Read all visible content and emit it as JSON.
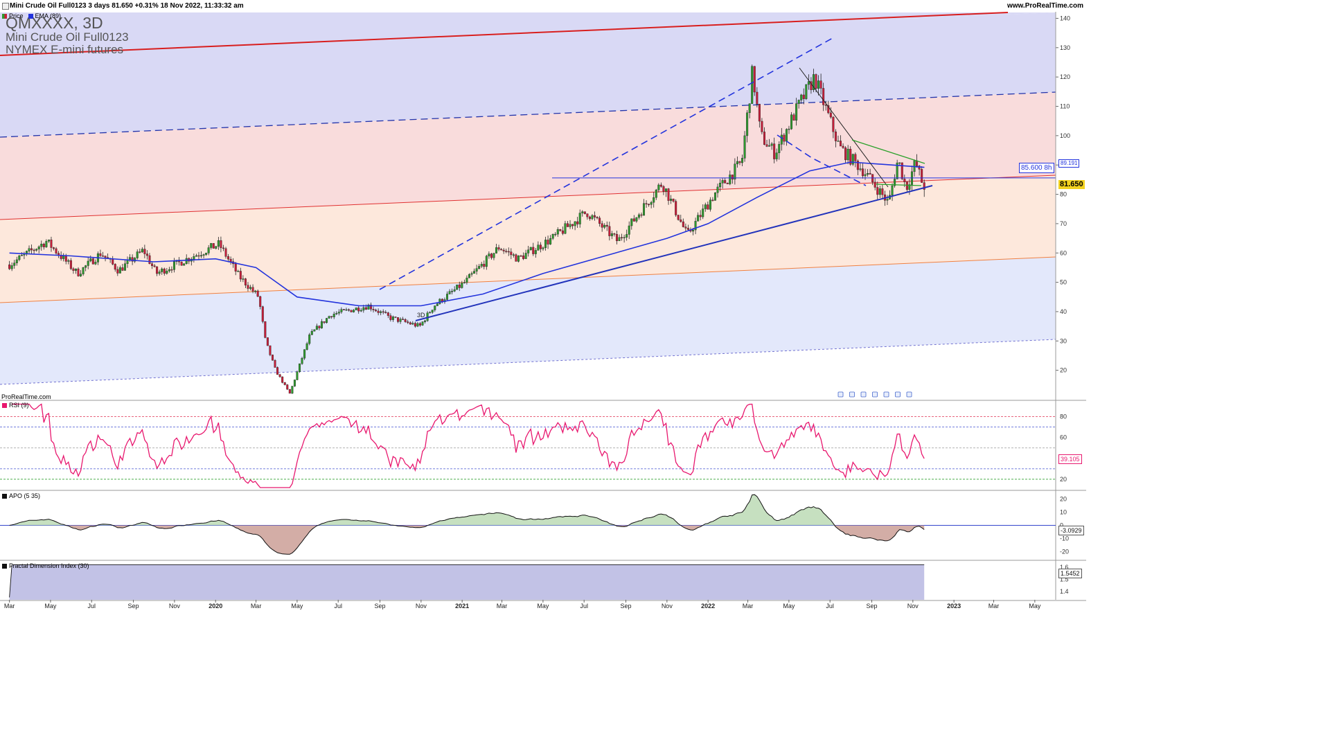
{
  "header": {
    "title": "Mini Crude Oil Full0123 3 days 81.650 +0.31% 18 Nov 2022, 11:33:32 am",
    "site": "www.ProRealTime.com",
    "site_footer": "ProRealTime.com"
  },
  "watermark": {
    "symbol": "QMXXXX, 3D",
    "name": "Mini Crude Oil Full0123",
    "exchange": "NYMEX E-mini futures"
  },
  "colors": {
    "candle_up": "#2e9a2e",
    "candle_down": "#c81e3a",
    "ema": "#2233dd",
    "rsi": "#e8176e",
    "apo": "#111111",
    "fdi": "#111111",
    "band_top": "#d9d9f5",
    "band_mid": "#f9dcdc",
    "band_low": "#fde8dc",
    "band_bottom": "#e3e8fb"
  },
  "chart_data": [
    {
      "type": "candlestick",
      "legend": [
        "Price",
        "EMA (89)"
      ],
      "labels": {
        "timeframe_marker": "3D",
        "level_tag": "85.600 8h",
        "ema_tag": "89.191",
        "last_tag": "81.650"
      },
      "y_ticks": [
        20,
        30,
        40,
        50,
        60,
        70,
        80,
        90,
        100,
        110,
        120,
        130,
        140
      ],
      "ylim": [
        10,
        142
      ],
      "x_labels": [
        "Mar",
        "May",
        "Jul",
        "Sep",
        "Nov",
        "2020",
        "Mar",
        "May",
        "Jul",
        "Sep",
        "Nov",
        "2021",
        "Mar",
        "May",
        "Jul",
        "Sep",
        "Nov",
        "2022",
        "Mar",
        "May",
        "Jul",
        "Sep",
        "Nov",
        "2023",
        "Mar",
        "May"
      ],
      "price_keypoints": [
        [
          "2019-03-01",
          56
        ],
        [
          "2019-04-25",
          64
        ],
        [
          "2019-06-10",
          53
        ],
        [
          "2019-07-15",
          60
        ],
        [
          "2019-08-10",
          54
        ],
        [
          "2019-09-16",
          61
        ],
        [
          "2019-10-05",
          53
        ],
        [
          "2019-11-20",
          58
        ],
        [
          "2020-01-06",
          63
        ],
        [
          "2020-02-05",
          52
        ],
        [
          "2020-03-05",
          45
        ],
        [
          "2020-03-15",
          30
        ],
        [
          "2020-03-30",
          20
        ],
        [
          "2020-04-20",
          12
        ],
        [
          "2020-05-20",
          32
        ],
        [
          "2020-06-20",
          39
        ],
        [
          "2020-08-15",
          42
        ],
        [
          "2020-09-15",
          38
        ],
        [
          "2020-10-30",
          35
        ],
        [
          "2020-11-20",
          42
        ],
        [
          "2021-01-05",
          50
        ],
        [
          "2021-02-25",
          62
        ],
        [
          "2021-03-25",
          58
        ],
        [
          "2021-05-15",
          65
        ],
        [
          "2021-07-05",
          74
        ],
        [
          "2021-08-20",
          64
        ],
        [
          "2021-10-25",
          84
        ],
        [
          "2021-12-01",
          66
        ],
        [
          "2022-01-10",
          80
        ],
        [
          "2022-02-20",
          91
        ],
        [
          "2022-03-08",
          122
        ],
        [
          "2022-03-20",
          100
        ],
        [
          "2022-04-10",
          94
        ],
        [
          "2022-05-15",
          110
        ],
        [
          "2022-06-08",
          120
        ],
        [
          "2022-07-15",
          96
        ],
        [
          "2022-08-20",
          88
        ],
        [
          "2022-09-26",
          77
        ],
        [
          "2022-10-10",
          92
        ],
        [
          "2022-10-22",
          82
        ],
        [
          "2022-11-05",
          91
        ],
        [
          "2022-11-18",
          81.65
        ]
      ],
      "ema_keypoints": [
        [
          "2019-03-01",
          60
        ],
        [
          "2019-06-01",
          59
        ],
        [
          "2019-10-01",
          57
        ],
        [
          "2020-01-01",
          58
        ],
        [
          "2020-03-01",
          55
        ],
        [
          "2020-05-01",
          45
        ],
        [
          "2020-08-01",
          42
        ],
        [
          "2020-11-01",
          42
        ],
        [
          "2021-02-01",
          46
        ],
        [
          "2021-05-01",
          53
        ],
        [
          "2021-08-01",
          59
        ],
        [
          "2021-11-01",
          65
        ],
        [
          "2022-01-01",
          70
        ],
        [
          "2022-03-15",
          79
        ],
        [
          "2022-06-01",
          88
        ],
        [
          "2022-08-01",
          91
        ],
        [
          "2022-11-18",
          89.2
        ]
      ],
      "horizontal_level": 85.6
    },
    {
      "type": "line",
      "legend": "RSI (9)",
      "y_ticks": [
        20,
        40,
        60,
        80
      ],
      "ylim": [
        10,
        95
      ],
      "levels": [
        80,
        70,
        50,
        30,
        20
      ],
      "last_tag": "39.105"
    },
    {
      "type": "area",
      "legend": "APO (5 35)",
      "y_ticks": [
        20,
        10,
        0,
        -10,
        -20
      ],
      "ylim": [
        -26,
        26
      ],
      "last_tag": "-3.0929"
    },
    {
      "type": "area",
      "legend": "Fractal Dimension Index (30)",
      "y_ticks": [
        1.4,
        1.5,
        1.6
      ],
      "ylim": [
        1.33,
        1.65
      ],
      "last_tag": "1.5452"
    }
  ]
}
